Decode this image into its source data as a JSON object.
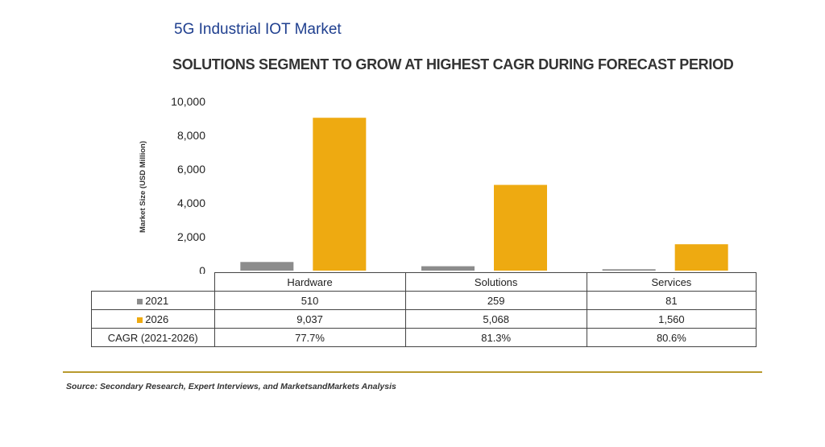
{
  "header": {
    "title": "5G Industrial IOT Market",
    "subtitle": "SOLUTIONS SEGMENT TO GROW AT HIGHEST CAGR DURING FORECAST PERIOD"
  },
  "chart_data": {
    "type": "bar",
    "categories": [
      "Hardware",
      "Solutions",
      "Services"
    ],
    "series": [
      {
        "name": "2021",
        "values": [
          510,
          259,
          81
        ],
        "color": "#8c8c8c"
      },
      {
        "name": "2026",
        "values": [
          9037,
          5068,
          1560
        ],
        "color": "#eeaa11"
      }
    ],
    "ylabel": "Market Size (USD Million)",
    "ylim": [
      0,
      10000
    ],
    "yticks": [
      0,
      2000,
      4000,
      6000,
      8000,
      10000
    ],
    "ytick_labels": [
      "0",
      "2,000",
      "4,000",
      "6,000",
      "8,000",
      "10,000"
    ],
    "table": {
      "rows": [
        {
          "label": "2021",
          "cells": [
            "510",
            "259",
            "81"
          ]
        },
        {
          "label": "2026",
          "cells": [
            "9,037",
            "5,068",
            "1,560"
          ]
        },
        {
          "label": "CAGR (2021-2026)",
          "cells": [
            "77.7%",
            "81.3%",
            "80.6%"
          ]
        }
      ]
    },
    "grid": false
  },
  "footer": {
    "source": "Source: Secondary Research, Expert Interviews, and MarketsandMarkets Analysis"
  }
}
